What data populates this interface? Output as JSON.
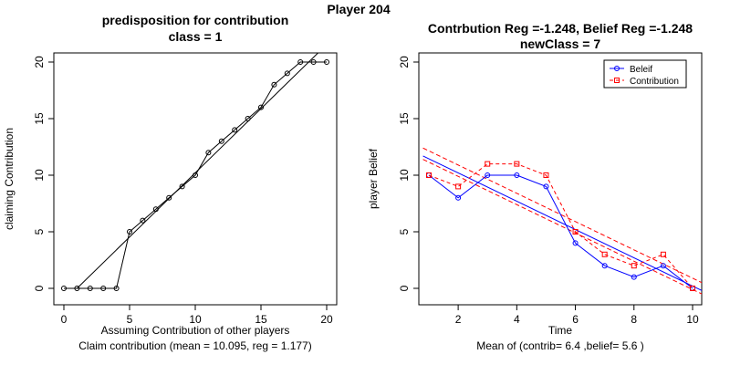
{
  "figure_title": "Player 204",
  "chart_data": [
    {
      "type": "scatter",
      "title": [
        "predisposition for contribution",
        "class = 1"
      ],
      "xlabel": "Assuming Contribution of other players",
      "caption": "Claim contribution (mean = 10.095, reg = 1.177)",
      "ylabel": "claiming Contribution",
      "xlim": [
        0,
        20
      ],
      "ylim": [
        0,
        20
      ],
      "xticks": [
        0,
        5,
        10,
        15,
        20
      ],
      "yticks": [
        0,
        5,
        10,
        15,
        20
      ],
      "grid": false,
      "series": [
        {
          "style": "line-points",
          "marker": "open-circle",
          "color": "#000000",
          "x": [
            0,
            1,
            2,
            3,
            4,
            5,
            6,
            7,
            8,
            9,
            10,
            11,
            12,
            13,
            14,
            15,
            16,
            17,
            18,
            19,
            20
          ],
          "y": [
            0,
            0,
            0,
            0,
            0,
            5,
            6,
            7,
            8,
            9,
            10,
            12,
            13,
            14,
            15,
            16,
            18,
            19,
            20,
            20,
            20
          ]
        },
        {
          "style": "regression-line",
          "color": "#000000",
          "x": [
            1.0,
            19.6
          ],
          "y": [
            0,
            21.1
          ]
        }
      ]
    },
    {
      "type": "line",
      "title": [
        "Contrbution Reg =-1.248, Belief Reg =-1.248",
        "newClass = 7"
      ],
      "xlabel": "Time",
      "caption": "Mean of (contrib= 6.4  ,belief= 5.6 )",
      "ylabel": "player Belief",
      "xlim": [
        1,
        10
      ],
      "ylim": [
        0,
        20
      ],
      "xticks": [
        2,
        4,
        6,
        8,
        10
      ],
      "yticks": [
        0,
        5,
        10,
        15,
        20
      ],
      "grid": false,
      "legend_position": "top-right",
      "series": [
        {
          "name": "Beleif",
          "color": "#0000ff",
          "dash": "solid",
          "marker": "open-circle",
          "x": [
            1,
            2,
            3,
            4,
            5,
            6,
            7,
            8,
            9,
            10
          ],
          "y": [
            10,
            8,
            10,
            10,
            9,
            4,
            2,
            1,
            2,
            0
          ]
        },
        {
          "name": "Contribution",
          "color": "#ff0000",
          "dash": "dashed",
          "marker": "open-square",
          "x": [
            1,
            2,
            3,
            4,
            5,
            6,
            7,
            8,
            9,
            10
          ],
          "y": [
            10,
            9,
            11,
            11,
            10,
            5,
            3,
            2,
            3,
            0
          ]
        }
      ],
      "trend_lines": [
        {
          "color": "#0000ff",
          "dash": "solid",
          "x": [
            0.8,
            10.4
          ],
          "y": [
            11.7,
            -0.3
          ]
        },
        {
          "color": "#ff0000",
          "dash": "dashed",
          "x": [
            0.8,
            10.4
          ],
          "y": [
            12.4,
            0.4
          ]
        },
        {
          "color": "#ff0000",
          "dash": "dashed",
          "x": [
            0.8,
            10.4
          ],
          "y": [
            11.4,
            -0.6
          ]
        }
      ]
    }
  ]
}
